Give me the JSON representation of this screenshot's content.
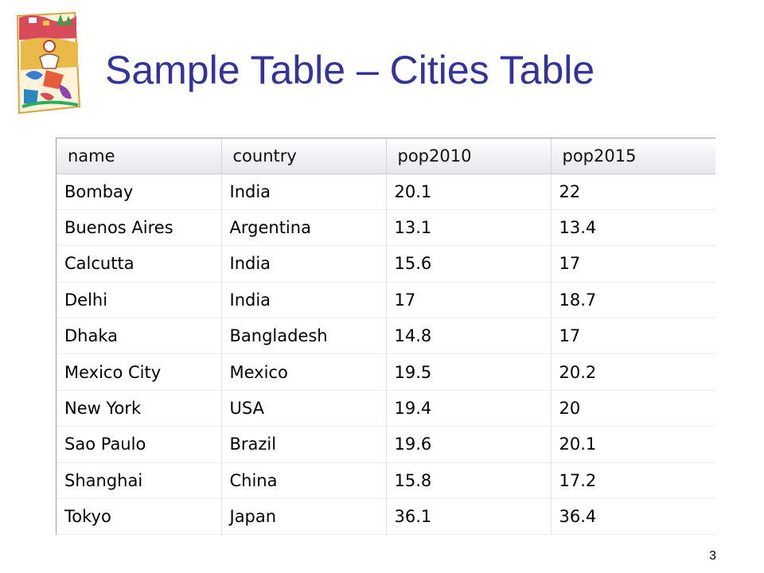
{
  "slide": {
    "title": "Sample Table – Cities Table",
    "page_number": "3"
  },
  "table": {
    "columns": [
      "name",
      "country",
      "pop2010",
      "pop2015"
    ],
    "rows": [
      [
        "Bombay",
        "India",
        "20.1",
        "22"
      ],
      [
        "Buenos Aires",
        "Argentina",
        "13.1",
        "13.4"
      ],
      [
        "Calcutta",
        "India",
        "15.6",
        "17"
      ],
      [
        "Delhi",
        "India",
        "17",
        "18.7"
      ],
      [
        "Dhaka",
        "Bangladesh",
        "14.8",
        "17"
      ],
      [
        "Mexico City",
        "Mexico",
        "19.5",
        "20.2"
      ],
      [
        "New York",
        "USA",
        "19.4",
        "20"
      ],
      [
        "Sao Paulo",
        "Brazil",
        "19.6",
        "20.1"
      ],
      [
        "Shanghai",
        "China",
        "15.8",
        "17.2"
      ],
      [
        "Tokyo",
        "Japan",
        "36.1",
        "36.4"
      ]
    ]
  },
  "colors": {
    "title": "#333399",
    "header_bg": "#eef0f3",
    "grid_line": "#e3e3e3"
  },
  "icons": {
    "logo": "clipart-cartoon-logo"
  }
}
